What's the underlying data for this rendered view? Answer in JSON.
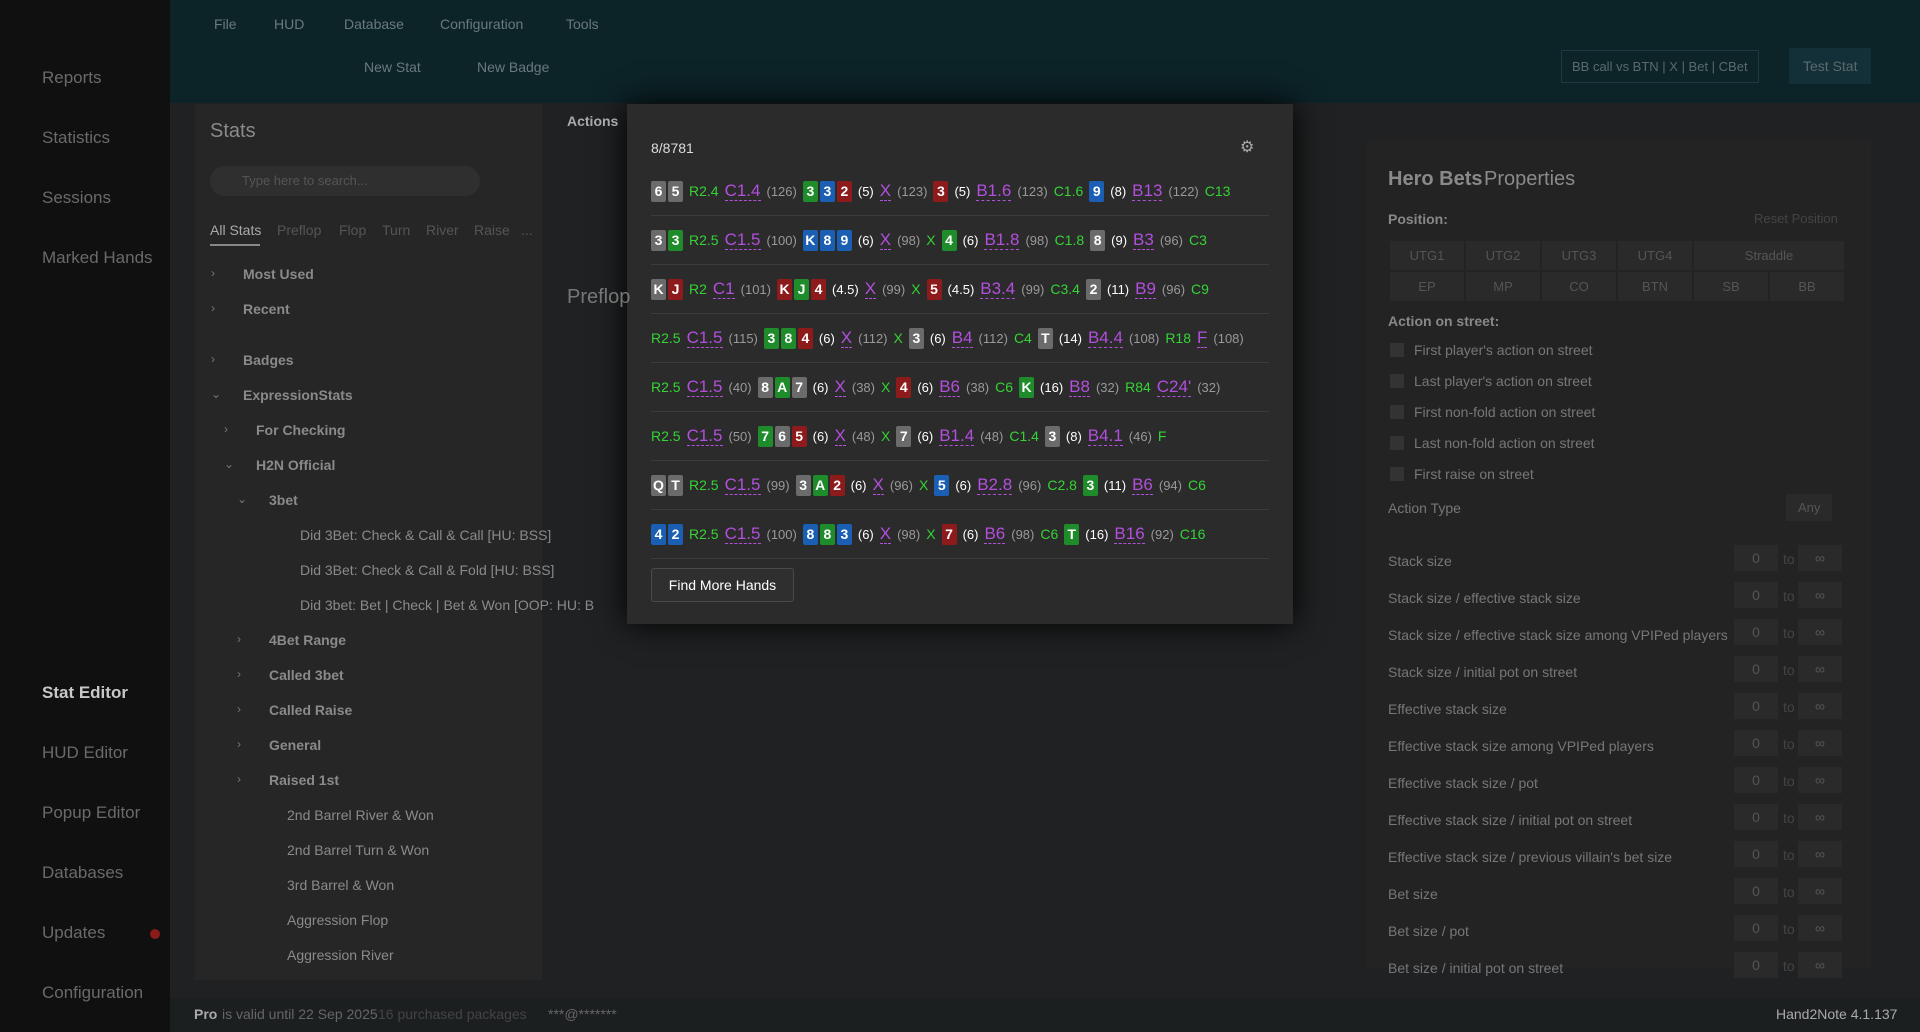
{
  "sidebar": {
    "nav": [
      "Reports",
      "Statistics",
      "Sessions",
      "Marked Hands"
    ],
    "bottom_nav": [
      "Stat Editor",
      "HUD Editor",
      "Popup Editor",
      "Databases",
      "Updates",
      "Configuration"
    ]
  },
  "menu": [
    "File",
    "HUD",
    "Database",
    "Configuration",
    "Tools"
  ],
  "toolbar": {
    "new_stat": "New Stat",
    "new_badge": "New Badge",
    "filter": "BB call vs BTN | X | Bet | CBet",
    "test_stat": "Test Stat"
  },
  "stats_panel": {
    "title": "Stats",
    "search_placeholder": "Type here to search...",
    "tabs": [
      "All Stats",
      "Preflop",
      "Flop",
      "Turn",
      "River",
      "Raise",
      "..."
    ],
    "tree": [
      {
        "label": "Most Used",
        "open": false
      },
      {
        "label": "Recent",
        "open": false
      },
      {
        "label": "Badges",
        "open": false
      },
      {
        "label": "ExpressionStats",
        "open": true,
        "children": [
          {
            "label": "For Checking",
            "open": false
          },
          {
            "label": "H2N Official",
            "open": true,
            "children": [
              {
                "label": "3bet",
                "open": true,
                "children": [
                  {
                    "label": "Did 3Bet: Check & Call & Call [HU: BSS]"
                  },
                  {
                    "label": "Did 3Bet: Check & Call & Fold [HU: BSS]"
                  },
                  {
                    "label": "Did 3bet: Bet | Check | Bet & Won [OOP: HU: B"
                  }
                ]
              },
              {
                "label": "4Bet Range",
                "open": false
              },
              {
                "label": "Called 3bet",
                "open": false
              },
              {
                "label": "Called Raise",
                "open": false
              },
              {
                "label": "General",
                "open": false
              },
              {
                "label": "Raised 1st",
                "open": false
              },
              {
                "label": "2nd Barrel River & Won"
              },
              {
                "label": "2nd Barrel Turn & Won"
              },
              {
                "label": "3rd Barrel & Won"
              },
              {
                "label": "Aggression Flop"
              },
              {
                "label": "Aggression River"
              }
            ]
          }
        ]
      }
    ]
  },
  "editor": {
    "tab": "Actions",
    "section": "Preflop"
  },
  "popup": {
    "count": "8/8781",
    "button": "Find More Hands",
    "hands": [
      [
        [
          "6",
          "gray"
        ],
        [
          "5",
          "gray"
        ],
        [
          "R2.4",
          "act"
        ],
        [
          "C1.4",
          "line"
        ],
        [
          "(126)",
          "pot"
        ],
        [
          "3",
          "green"
        ],
        [
          "3",
          "blue"
        ],
        [
          "2",
          "red"
        ],
        [
          "(5)",
          "amt"
        ],
        [
          "X",
          "line"
        ],
        [
          "(123)",
          "pot"
        ],
        [
          "3",
          "red"
        ],
        [
          "(5)",
          "amt"
        ],
        [
          "B1.6",
          "line"
        ],
        [
          "(123)",
          "pot"
        ],
        [
          "C1.6",
          "act"
        ],
        [
          "9",
          "blue"
        ],
        [
          "(8)",
          "amt"
        ],
        [
          "B13",
          "line"
        ],
        [
          "(122)",
          "pot"
        ],
        [
          "C13",
          "act"
        ]
      ],
      [
        [
          "3",
          "gray"
        ],
        [
          "3",
          "green"
        ],
        [
          "R2.5",
          "act"
        ],
        [
          "C1.5",
          "line"
        ],
        [
          "(100)",
          "pot"
        ],
        [
          "K",
          "blue"
        ],
        [
          "8",
          "blue"
        ],
        [
          "9",
          "blue"
        ],
        [
          "(6)",
          "amt"
        ],
        [
          "X",
          "line"
        ],
        [
          "(98)",
          "pot"
        ],
        [
          "X",
          "act"
        ],
        [
          "4",
          "green"
        ],
        [
          "(6)",
          "amt"
        ],
        [
          "B1.8",
          "line"
        ],
        [
          "(98)",
          "pot"
        ],
        [
          "C1.8",
          "act"
        ],
        [
          "8",
          "gray"
        ],
        [
          "(9)",
          "amt"
        ],
        [
          "B3",
          "line"
        ],
        [
          "(96)",
          "pot"
        ],
        [
          "C3",
          "act"
        ]
      ],
      [
        [
          "K",
          "gray"
        ],
        [
          "J",
          "red"
        ],
        [
          "R2",
          "act"
        ],
        [
          "C1",
          "line"
        ],
        [
          "(101)",
          "pot"
        ],
        [
          "K",
          "red"
        ],
        [
          "J",
          "green"
        ],
        [
          "4",
          "red"
        ],
        [
          "(4.5)",
          "amt"
        ],
        [
          "X",
          "line"
        ],
        [
          "(99)",
          "pot"
        ],
        [
          "X",
          "act"
        ],
        [
          "5",
          "red"
        ],
        [
          "(4.5)",
          "amt"
        ],
        [
          "B3.4",
          "line"
        ],
        [
          "(99)",
          "pot"
        ],
        [
          "C3.4",
          "act"
        ],
        [
          "2",
          "gray"
        ],
        [
          "(11)",
          "amt"
        ],
        [
          "B9",
          "line"
        ],
        [
          "(96)",
          "pot"
        ],
        [
          "C9",
          "act"
        ]
      ],
      [
        [
          "R2.5",
          "act"
        ],
        [
          "C1.5",
          "line"
        ],
        [
          "(115)",
          "pot"
        ],
        [
          "3",
          "green"
        ],
        [
          "8",
          "green"
        ],
        [
          "4",
          "red"
        ],
        [
          "(6)",
          "amt"
        ],
        [
          "X",
          "line"
        ],
        [
          "(112)",
          "pot"
        ],
        [
          "X",
          "act"
        ],
        [
          "3",
          "gray"
        ],
        [
          "(6)",
          "amt"
        ],
        [
          "B4",
          "line"
        ],
        [
          "(112)",
          "pot"
        ],
        [
          "C4",
          "act"
        ],
        [
          "T",
          "gray"
        ],
        [
          "(14)",
          "amt"
        ],
        [
          "B4.4",
          "line"
        ],
        [
          "(108)",
          "pot"
        ],
        [
          "R18",
          "act"
        ],
        [
          "F",
          "line"
        ],
        [
          "(108)",
          "pot"
        ]
      ],
      [
        [
          "R2.5",
          "act"
        ],
        [
          "C1.5",
          "line"
        ],
        [
          "(40)",
          "pot"
        ],
        [
          "8",
          "gray"
        ],
        [
          "A",
          "green"
        ],
        [
          "7",
          "gray"
        ],
        [
          "(6)",
          "amt"
        ],
        [
          "X",
          "line"
        ],
        [
          "(38)",
          "pot"
        ],
        [
          "X",
          "act"
        ],
        [
          "4",
          "red"
        ],
        [
          "(6)",
          "amt"
        ],
        [
          "B6",
          "line"
        ],
        [
          "(38)",
          "pot"
        ],
        [
          "C6",
          "act"
        ],
        [
          "K",
          "green"
        ],
        [
          "(16)",
          "amt"
        ],
        [
          "B8",
          "line"
        ],
        [
          "(32)",
          "pot"
        ],
        [
          "R84",
          "act"
        ],
        [
          "C24'",
          "line"
        ],
        [
          "(32)",
          "pot"
        ]
      ],
      [
        [
          "R2.5",
          "act"
        ],
        [
          "C1.5",
          "line"
        ],
        [
          "(50)",
          "pot"
        ],
        [
          "7",
          "green"
        ],
        [
          "6",
          "gray"
        ],
        [
          "5",
          "red"
        ],
        [
          "(6)",
          "amt"
        ],
        [
          "X",
          "line"
        ],
        [
          "(48)",
          "pot"
        ],
        [
          "X",
          "act"
        ],
        [
          "7",
          "gray"
        ],
        [
          "(6)",
          "amt"
        ],
        [
          "B1.4",
          "line"
        ],
        [
          "(48)",
          "pot"
        ],
        [
          "C1.4",
          "act"
        ],
        [
          "3",
          "gray"
        ],
        [
          "(8)",
          "amt"
        ],
        [
          "B4.1",
          "line"
        ],
        [
          "(46)",
          "pot"
        ],
        [
          "F",
          "act"
        ]
      ],
      [
        [
          "Q",
          "gray"
        ],
        [
          "T",
          "gray"
        ],
        [
          "R2.5",
          "act"
        ],
        [
          "C1.5",
          "line"
        ],
        [
          "(99)",
          "pot"
        ],
        [
          "3",
          "gray"
        ],
        [
          "A",
          "green"
        ],
        [
          "2",
          "red"
        ],
        [
          "(6)",
          "amt"
        ],
        [
          "X",
          "line"
        ],
        [
          "(96)",
          "pot"
        ],
        [
          "X",
          "act"
        ],
        [
          "5",
          "blue"
        ],
        [
          "(6)",
          "amt"
        ],
        [
          "B2.8",
          "line"
        ],
        [
          "(96)",
          "pot"
        ],
        [
          "C2.8",
          "act"
        ],
        [
          "3",
          "green"
        ],
        [
          "(11)",
          "amt"
        ],
        [
          "B6",
          "line"
        ],
        [
          "(94)",
          "pot"
        ],
        [
          "C6",
          "act"
        ]
      ],
      [
        [
          "4",
          "blue"
        ],
        [
          "2",
          "blue"
        ],
        [
          "R2.5",
          "act"
        ],
        [
          "C1.5",
          "line"
        ],
        [
          "(100)",
          "pot"
        ],
        [
          "8",
          "blue"
        ],
        [
          "8",
          "green"
        ],
        [
          "3",
          "blue"
        ],
        [
          "(6)",
          "amt"
        ],
        [
          "X",
          "line"
        ],
        [
          "(98)",
          "pot"
        ],
        [
          "X",
          "act"
        ],
        [
          "7",
          "red"
        ],
        [
          "(6)",
          "amt"
        ],
        [
          "B6",
          "line"
        ],
        [
          "(98)",
          "pot"
        ],
        [
          "C6",
          "act"
        ],
        [
          "T",
          "green"
        ],
        [
          "(16)",
          "amt"
        ],
        [
          "B16",
          "line"
        ],
        [
          "(92)",
          "pot"
        ],
        [
          "C16",
          "act"
        ]
      ]
    ]
  },
  "properties": {
    "title_bold": "Hero Bets",
    "title_rest": "Properties",
    "position_label": "Position:",
    "reset": "Reset Position",
    "positions": [
      [
        "UTG1",
        "UTG2",
        "UTG3",
        "UTG4",
        "Straddle"
      ],
      [
        "EP",
        "MP",
        "CO",
        "BTN",
        "SB",
        "BB"
      ]
    ],
    "action_label": "Action on street:",
    "checkboxes": [
      "First player's action on street",
      "Last player's action on street",
      "First non-fold action on street",
      "Last non-fold action on street",
      "First raise on street"
    ],
    "action_type": "Action Type",
    "any": "Any",
    "zero": "0",
    "to": "to",
    "inf": "∞",
    "fields": [
      "Stack size",
      "Stack size / effective stack size",
      "Stack size / effective stack size among VPIPed players",
      "Stack size / initial pot on street",
      "Effective stack size",
      "Effective stack size among VPIPed players",
      "Effective stack size / pot",
      "Effective stack size / initial pot on street",
      "Effective stack size / previous villain's bet size",
      "Bet size",
      "Bet size / pot",
      "Bet size / initial pot on street"
    ]
  },
  "status": {
    "pro": "Pro",
    "valid": "is valid until 22 Sep 2025",
    "packages": "16 purchased packages",
    "email": "***@*******",
    "version": "Hand2Note 4.1.137"
  }
}
